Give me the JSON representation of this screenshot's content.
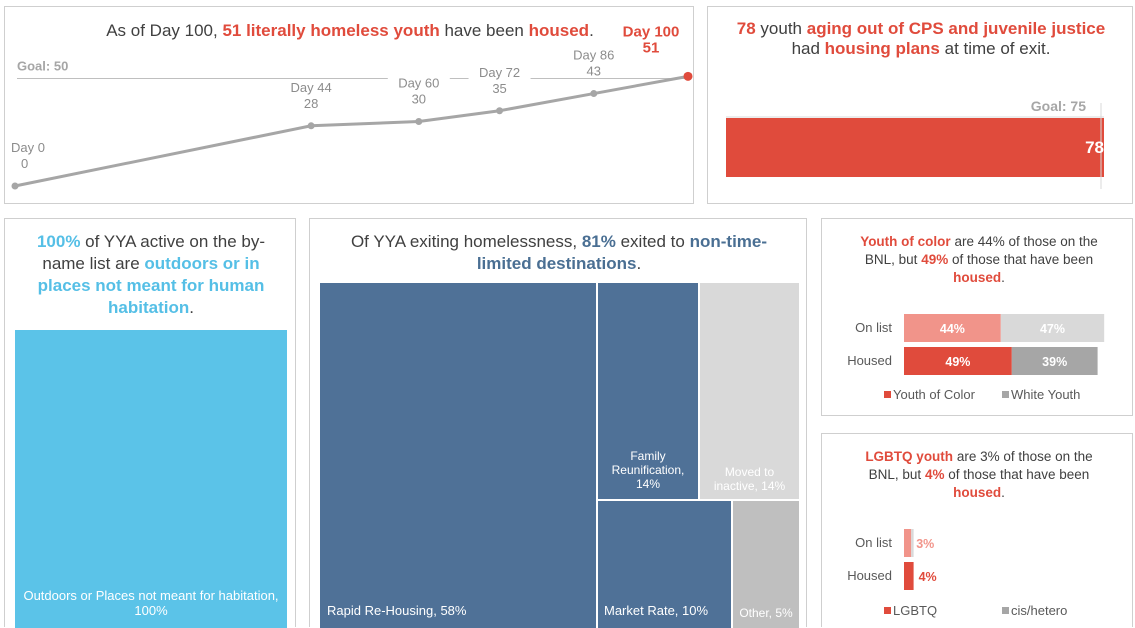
{
  "colors": {
    "red": "#e04b3c",
    "light_red": "#f1948a",
    "gray": "#a6a6a6",
    "light_gray": "#d9d9d9",
    "navy": "#4f7197",
    "cyan": "#5bc3e8",
    "line": "#a6a6a6"
  },
  "panel1": {
    "title_prefix": "As of Day 100, ",
    "title_hl1": "51 literally homeless youth",
    "title_mid": " have been ",
    "title_hl2": "housed",
    "title_end": ".",
    "goal_label": "Goal: 50",
    "chart_data": {
      "type": "line",
      "x": [
        0,
        44,
        60,
        72,
        86,
        100
      ],
      "labels": [
        "Day 0",
        "Day 44",
        "Day 60",
        "Day 72",
        "Day 86",
        "Day 100"
      ],
      "values": [
        0,
        28,
        30,
        35,
        43,
        51
      ],
      "goal": 50,
      "ylim": [
        0,
        60
      ]
    }
  },
  "panel2": {
    "title_hl1": "78",
    "title_mid1": " youth ",
    "title_hl2": "aging out of CPS and juvenile justice",
    "title_mid2": " had ",
    "title_hl3": "housing plans",
    "title_end": " at time of exit.",
    "goal_label": "Goal: 75",
    "chart_data": {
      "type": "bar",
      "values": [
        78
      ],
      "value_label": "78",
      "goal": 75,
      "xlim": [
        0,
        78
      ]
    }
  },
  "panel3": {
    "title_hl1": "100%",
    "title_mid": " of YYA active on the by-name list are ",
    "title_hl2": "outdoors or in places not meant for human habitation",
    "title_end": ".",
    "chart_data": {
      "type": "treemap",
      "items": [
        {
          "label": "Outdoors or Places not meant for habitation, 100%",
          "value": 100
        }
      ]
    }
  },
  "panel4": {
    "title_prefix": "Of YYA exiting homelessness, ",
    "title_hl1": "81%",
    "title_mid": " exited to ",
    "title_hl2": "non-time-limited destinations",
    "title_end": ".",
    "chart_data": {
      "type": "treemap",
      "items": [
        {
          "label": "Rapid Re-Housing, 58%",
          "value": 58
        },
        {
          "label": "Family Reunification, 14%",
          "value": 14
        },
        {
          "label": "Moved to inactive, 14%",
          "value": 14
        },
        {
          "label": "Market Rate, 10%",
          "value": 10
        },
        {
          "label": "Other, 5%",
          "value": 5
        }
      ]
    }
  },
  "panel5": {
    "title_hl1": "Youth of color",
    "title_mid1": " are 44% of those on the BNL, but ",
    "title_hl2": "49%",
    "title_mid2": " of those that have been ",
    "title_hl3": "housed",
    "title_end": ".",
    "chart_data": {
      "type": "bar",
      "stacked": true,
      "categories": [
        "On list",
        "Housed"
      ],
      "series": [
        {
          "name": "Youth of Color",
          "values": [
            44,
            49
          ],
          "labels": [
            "44%",
            "49%"
          ]
        },
        {
          "name": "White Youth",
          "values": [
            47,
            39
          ],
          "labels": [
            "47%",
            "39%"
          ]
        }
      ],
      "legend": "bottom"
    }
  },
  "panel6": {
    "title_hl1": "LGBTQ youth",
    "title_mid1": " are 3% of those on the BNL, but ",
    "title_hl2": "4%",
    "title_mid2": " of those that have been ",
    "title_hl3": "housed",
    "title_end": ".",
    "chart_data": {
      "type": "bar",
      "stacked": true,
      "categories": [
        "On list",
        "Housed"
      ],
      "series": [
        {
          "name": "LGBTQ",
          "values": [
            3,
            4
          ],
          "labels": [
            "3%",
            "4%"
          ]
        },
        {
          "name": "cis/hetero",
          "values": [
            1,
            0
          ],
          "labels": [
            "",
            ""
          ]
        }
      ],
      "legend": "bottom"
    }
  }
}
